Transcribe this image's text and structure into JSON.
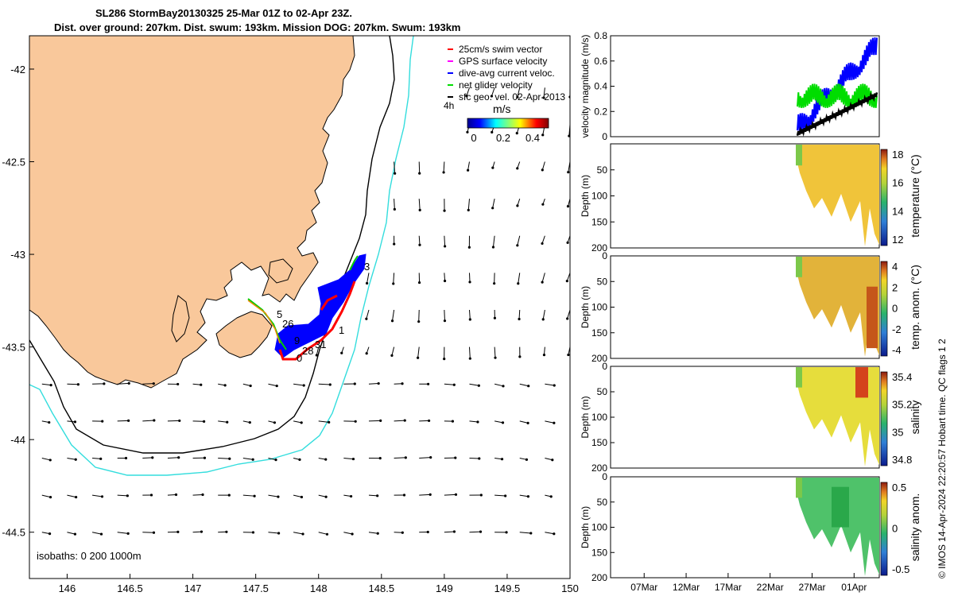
{
  "title_lines": [
    "SL286 StormBay20130325 25-Mar 01Z to 02-Apr 23Z.",
    "Dist. over ground: 207km. Dist. swum: 193km. Mission DOG: 207km. Swum: 193km"
  ],
  "map": {
    "xticks": [
      "146",
      "146.5",
      "147",
      "147.5",
      "148",
      "148.5",
      "149",
      "149.5",
      "150"
    ],
    "yticks": [
      "-42",
      "-42.5",
      "-43",
      "-43.5",
      "-44",
      "-44.5"
    ],
    "isobaths_label": "isobaths: 0   200  1000m",
    "legend": [
      {
        "label": "25cm/s swim vector",
        "color": "#ff0000"
      },
      {
        "label": "GPS surface velocity",
        "color": "#ff00ff"
      },
      {
        "label": "dive-avg current veloc.",
        "color": "#0000ff"
      },
      {
        "label": "net glider velocity",
        "color": "#00dd00"
      },
      {
        "label": "sfc geo. vel. 02-Apr-2013",
        "color": "#000000"
      }
    ],
    "hour_label": "4h",
    "colorbar": {
      "label": "m/s",
      "ticks": [
        "0",
        "0.2",
        "0.4"
      ]
    },
    "track_labels": [
      "3",
      "5",
      "26",
      "1",
      "9",
      "31",
      "28",
      "0"
    ],
    "colors": {
      "land": "#f9c89b",
      "isobath_200": "#000000",
      "isobath_1000": "#33dddd",
      "track": "#0000ff"
    }
  },
  "panels": [
    {
      "ylabel": "velocity magnitude (m/s)",
      "yticks": [
        "0",
        "0.2",
        "0.4",
        "0.6",
        "0.8"
      ],
      "clabel": "",
      "cticks": []
    },
    {
      "ylabel": "Depth (m)",
      "yticks": [
        "50",
        "100",
        "150",
        "200"
      ],
      "clabel": "temperature (°C)",
      "cticks": [
        "18",
        "16",
        "14",
        "12"
      ]
    },
    {
      "ylabel": "Depth (m)",
      "yticks": [
        "0",
        "50",
        "100",
        "150",
        "200"
      ],
      "clabel": "temp. anom. (°C)",
      "cticks": [
        "4",
        "2",
        "0",
        "-2",
        "-4"
      ]
    },
    {
      "ylabel": "Depth (m)",
      "yticks": [
        "0",
        "50",
        "100",
        "150",
        "200"
      ],
      "clabel": "salinity",
      "cticks": [
        "35.4",
        "35.2",
        "35",
        "34.8"
      ]
    },
    {
      "ylabel": "Depth (m)",
      "yticks": [
        "0",
        "50",
        "100",
        "150",
        "200"
      ],
      "clabel": "salinity anom.",
      "cticks": [
        "0.5",
        "0",
        "-0.5"
      ]
    }
  ],
  "time_xticks": [
    "07Mar",
    "12Mar",
    "17Mar",
    "22Mar",
    "27Mar",
    "01Apr"
  ],
  "credit": "© IMOS 14-Apr-2024 22:20:57 Hobart time. QC flags 1  2",
  "chart_data": [
    {
      "type": "scatter",
      "title": "SL286 StormBay20130325 25-Mar 01Z to 02-Apr 23Z.",
      "xlim": [
        145.7,
        150.0
      ],
      "ylim": [
        -44.75,
        -41.82
      ],
      "xlabel": "",
      "ylabel": "",
      "series": [
        {
          "name": "glider track",
          "x": [
            147.48,
            147.62,
            147.72,
            147.86,
            148.02,
            148.14,
            148.22,
            148.32,
            148.36
          ],
          "y": [
            -43.14,
            -43.28,
            -43.42,
            -43.44,
            -43.32,
            -43.18,
            -43.08,
            -42.98,
            -42.93
          ]
        }
      ],
      "isobaths_m": [
        0,
        200,
        1000
      ]
    },
    {
      "type": "line",
      "ylabel": "velocity magnitude (m/s)",
      "ylim": [
        0,
        0.8
      ],
      "xlim": [
        "03-Mar",
        "04-Apr"
      ],
      "series": [
        {
          "name": "dive-avg current veloc.",
          "x": [
            "25-Mar",
            "27-Mar",
            "29-Mar",
            "31-Mar",
            "02-Apr"
          ],
          "values": [
            0.05,
            0.25,
            0.3,
            0.4,
            0.7
          ]
        },
        {
          "name": "net glider velocity",
          "x": [
            "25-Mar",
            "27-Mar",
            "29-Mar",
            "31-Mar",
            "02-Apr"
          ],
          "values": [
            0.3,
            0.3,
            0.25,
            0.3,
            0.3
          ]
        },
        {
          "name": "",
          "x": [
            "25-Mar",
            "27-Mar",
            "29-Mar",
            "31-Mar",
            "02-Apr"
          ],
          "values": [
            0.02,
            0.15,
            0.18,
            0.25,
            0.33
          ]
        }
      ]
    },
    {
      "type": "heatmap",
      "ylabel": "Depth (m)",
      "clabel": "temperature (°C)",
      "clim": [
        11,
        19
      ],
      "ylim": [
        200,
        0
      ]
    },
    {
      "type": "heatmap",
      "ylabel": "Depth (m)",
      "clabel": "temp. anom. (°C)",
      "clim": [
        -4,
        4
      ],
      "ylim": [
        200,
        0
      ]
    },
    {
      "type": "heatmap",
      "ylabel": "Depth (m)",
      "clabel": "salinity",
      "clim": [
        34.7,
        35.5
      ],
      "ylim": [
        200,
        0
      ]
    },
    {
      "type": "heatmap",
      "ylabel": "Depth (m)",
      "clabel": "salinity anom.",
      "clim": [
        -0.5,
        0.5
      ],
      "ylim": [
        200,
        0
      ]
    }
  ]
}
